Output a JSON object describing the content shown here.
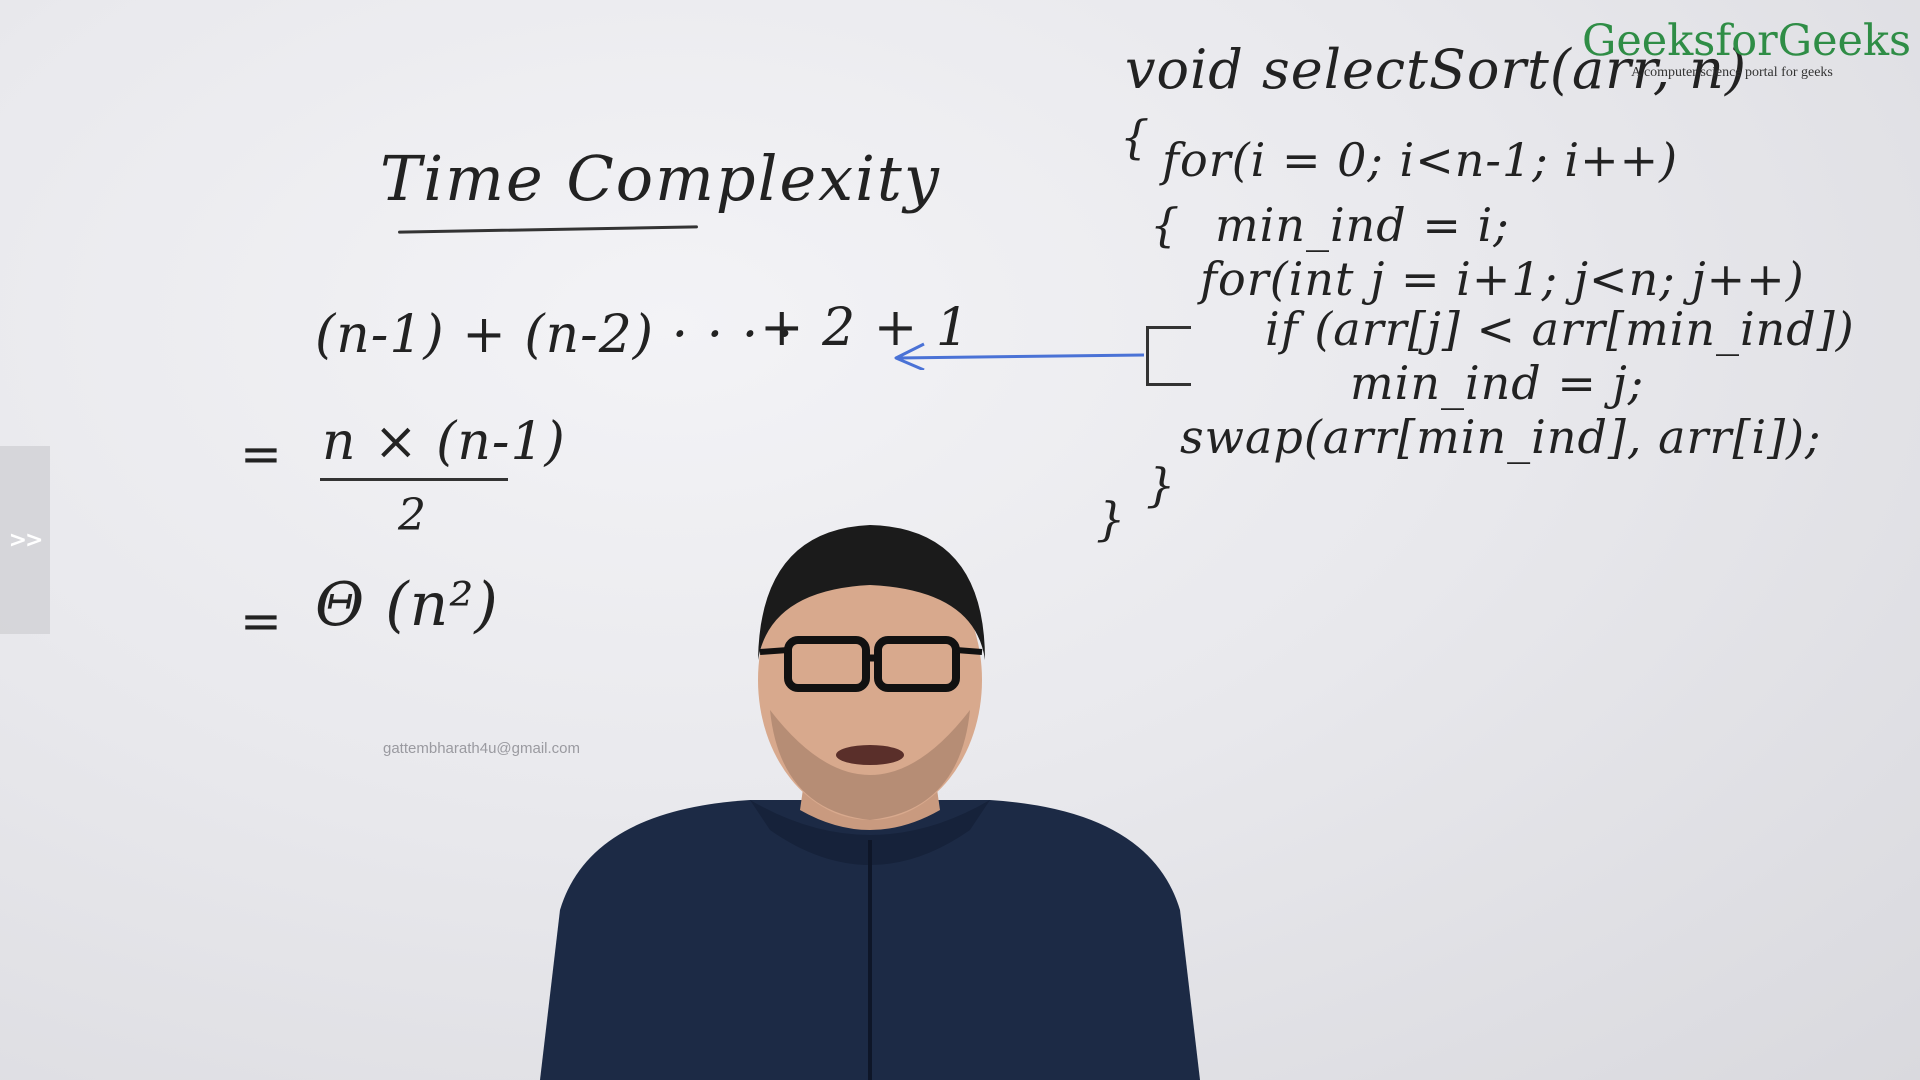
{
  "board": {
    "title": "Time Complexity",
    "equations": {
      "sum": "(n-1) + (n-2) · · · ·",
      "sum_tail": "+ 2 + 1",
      "eq2_sign": "=",
      "eq2_numerator": "n × (n-1)",
      "eq2_denominator": "2",
      "eq3_sign": "=",
      "eq3": "Θ (n²)"
    },
    "code": {
      "signature": "void selectSort(arr, n)",
      "open_brace": "{",
      "loop_outer": "for(i = 0; i<n-1; i++)",
      "inner_open": "{",
      "assign_min": "min_ind = i;",
      "loop_inner": "for(int j = i+1; j<n; j++)",
      "if_line": "if (arr[j] < arr[min_ind])",
      "update_min": "min_ind = j;",
      "swap_line": "swap(arr[min_ind], arr[i]);",
      "inner_close": "}",
      "outer_close": "}"
    }
  },
  "logo": {
    "name": "GeeksforGeeks",
    "tagline": "A computer science portal for geeks",
    "color": "#2f8d46"
  },
  "watermark_email": "gattembharath4u@gmail.com",
  "side_panel": {
    "toggle_label": ">>"
  },
  "colors": {
    "board": "#e9e9ed",
    "arrow": "#4a72d6",
    "ink": "#222222"
  }
}
